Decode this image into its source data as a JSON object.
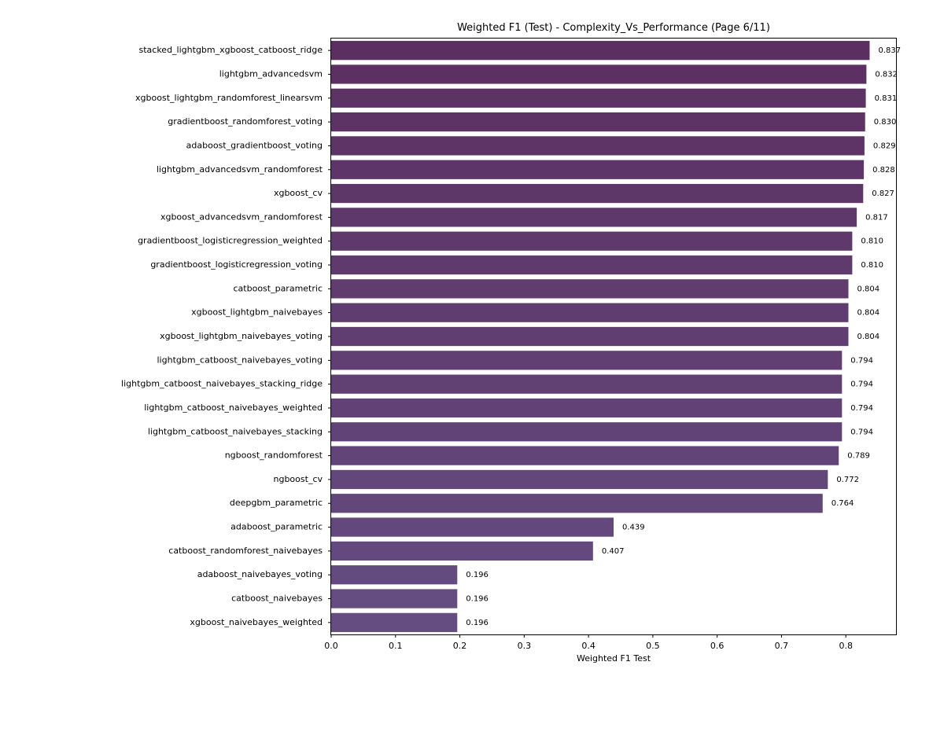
{
  "chart_data": {
    "type": "bar",
    "orientation": "horizontal",
    "title": "Weighted F1 (Test) - Complexity_Vs_Performance (Page 6/11)",
    "xlabel": "Weighted F1 Test",
    "ylabel": "",
    "xlim": [
      0,
      0.878
    ],
    "x_ticks": [
      "0.0",
      "0.1",
      "0.2",
      "0.3",
      "0.4",
      "0.5",
      "0.6",
      "0.7",
      "0.8"
    ],
    "grid": false,
    "categories": [
      "stacked_lightgbm_xgboost_catboost_ridge",
      "lightgbm_advancedsvm",
      "xgboost_lightgbm_randomforest_linearsvm",
      "gradientboost_randomforest_voting",
      "adaboost_gradientboost_voting",
      "lightgbm_advancedsvm_randomforest",
      "xgboost_cv",
      "xgboost_advancedsvm_randomforest",
      "gradientboost_logisticregression_weighted",
      "gradientboost_logisticregression_voting",
      "catboost_parametric",
      "xgboost_lightgbm_naivebayes",
      "xgboost_lightgbm_naivebayes_voting",
      "lightgbm_catboost_naivebayes_voting",
      "lightgbm_catboost_naivebayes_stacking_ridge",
      "lightgbm_catboost_naivebayes_weighted",
      "lightgbm_catboost_naivebayes_stacking",
      "ngboost_randomforest",
      "ngboost_cv",
      "deepgbm_parametric",
      "adaboost_parametric",
      "catboost_randomforest_naivebayes",
      "adaboost_naivebayes_voting",
      "catboost_naivebayes",
      "xgboost_naivebayes_weighted"
    ],
    "values": [
      0.837,
      0.832,
      0.831,
      0.83,
      0.829,
      0.828,
      0.827,
      0.817,
      0.81,
      0.81,
      0.804,
      0.804,
      0.804,
      0.794,
      0.794,
      0.794,
      0.794,
      0.789,
      0.772,
      0.764,
      0.439,
      0.407,
      0.196,
      0.196,
      0.196
    ],
    "value_labels": [
      "0.837",
      "0.832",
      "0.831",
      "0.830",
      "0.829",
      "0.828",
      "0.827",
      "0.817",
      "0.810",
      "0.810",
      "0.804",
      "0.804",
      "0.804",
      "0.794",
      "0.794",
      "0.794",
      "0.794",
      "0.789",
      "0.772",
      "0.764",
      "0.439",
      "0.407",
      "0.196",
      "0.196",
      "0.196"
    ],
    "colors": {
      "bar_start": "#5c2f61",
      "bar_end": "#654d82",
      "axis": "#000000",
      "text": "#000000"
    }
  }
}
